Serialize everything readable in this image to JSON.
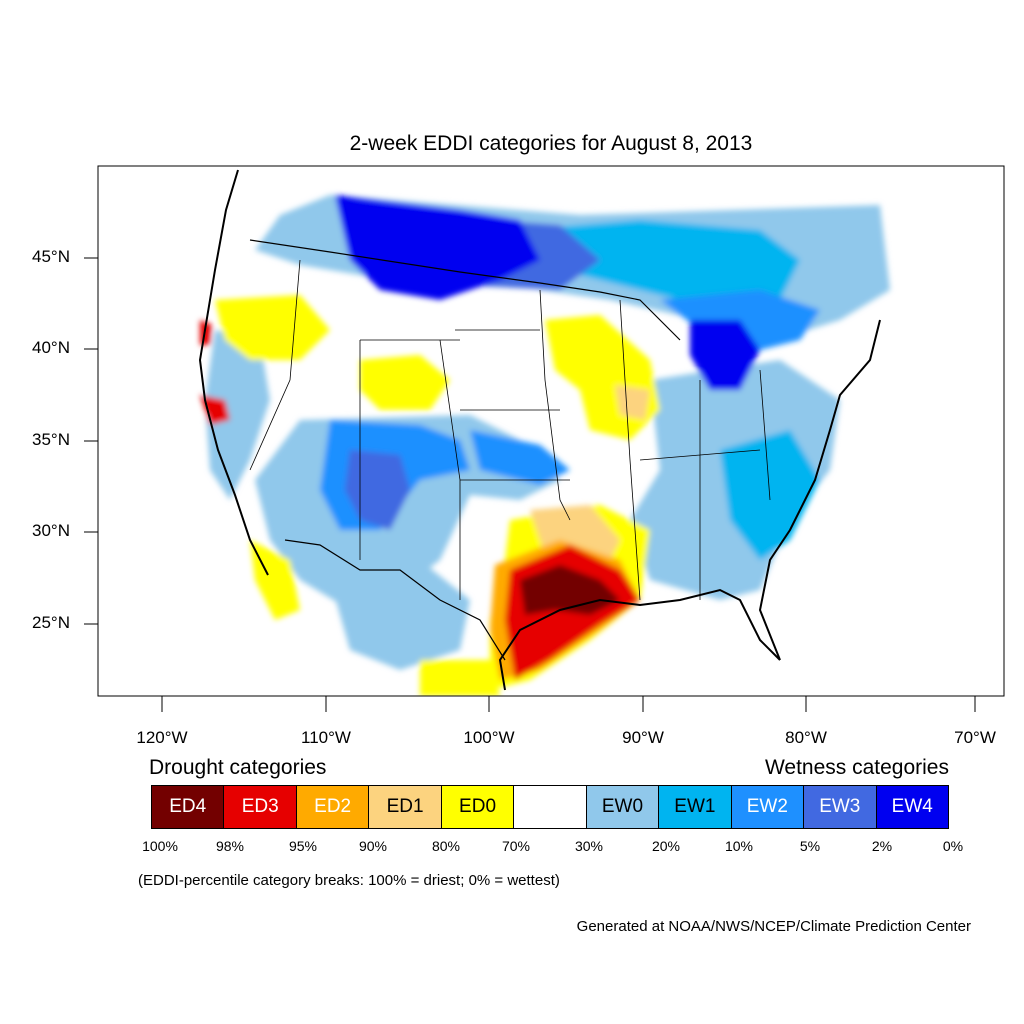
{
  "map": {
    "title": "2-week EDDI categories for August 8, 2013",
    "latitude_labels": [
      "45°N",
      "40°N",
      "35°N",
      "30°N",
      "25°N"
    ],
    "longitude_labels": [
      "120°W",
      "110°W",
      "100°W",
      "90°W",
      "80°W",
      "70°W"
    ],
    "regions": [
      {
        "name": "northern plains / upper midwest / ontario",
        "category": "EW4"
      },
      {
        "name": "great lakes / michigan",
        "category": "EW4"
      },
      {
        "name": "southeast texas / louisiana",
        "category": "ED4"
      },
      {
        "name": "texas gulf coast",
        "category": "ED3"
      },
      {
        "name": "iowa / illinois",
        "category": "ED0"
      },
      {
        "name": "southwest / new mexico",
        "category": "EW3"
      },
      {
        "name": "southeast atlantic coast",
        "category": "EW2"
      },
      {
        "name": "california interior",
        "category": "ED3"
      }
    ]
  },
  "legend": {
    "drought_heading": "Drought categories",
    "wetness_heading": "Wetness categories",
    "categories": [
      {
        "label": "ED4",
        "color": "#730000",
        "text_color": "#ffffff"
      },
      {
        "label": "ED3",
        "color": "#e60000",
        "text_color": "#ffffff"
      },
      {
        "label": "ED2",
        "color": "#ffaa00",
        "text_color": "#ffffff"
      },
      {
        "label": "ED1",
        "color": "#fcd37f",
        "text_color": "#000000"
      },
      {
        "label": "ED0",
        "color": "#ffff00",
        "text_color": "#000000"
      },
      {
        "label": "",
        "color": "#ffffff",
        "text_color": "#000000"
      },
      {
        "label": "EW0",
        "color": "#90c8eb",
        "text_color": "#000000"
      },
      {
        "label": "EW1",
        "color": "#00b4f0",
        "text_color": "#000000"
      },
      {
        "label": "EW2",
        "color": "#1e90ff",
        "text_color": "#ffffff"
      },
      {
        "label": "EW3",
        "color": "#4169e1",
        "text_color": "#ffffff"
      },
      {
        "label": "EW4",
        "color": "#0000f0",
        "text_color": "#ffffff"
      }
    ],
    "breaks": [
      "100%",
      "98%",
      "95%",
      "90%",
      "80%",
      "70%",
      "30%",
      "20%",
      "10%",
      "5%",
      "2%",
      "0%"
    ]
  },
  "note": "(EDDI-percentile category breaks: 100% = driest; 0% = wettest)",
  "credit": "Generated at NOAA/NWS/NCEP/Climate Prediction Center"
}
